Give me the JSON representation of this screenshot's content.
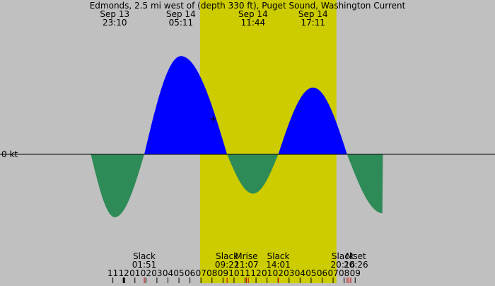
{
  "chart_data": {
    "type": "area",
    "title": "Edmonds, 2.5 mi west of (depth 330 ft), Puget Sound, Washington Current",
    "zero_label": "0 kt",
    "x_unit": "hours since 00:00 Sep 14",
    "x_range": [
      -11.25,
      33.7
    ],
    "y_range": [
      -2.6,
      4.2
    ],
    "daylight": {
      "start": 6.92,
      "end": 19.3,
      "color": "#cccc00"
    },
    "night_color": "#c0c0c0",
    "flood_color": "#0000ff",
    "ebb_color": "#2e8b57",
    "extremes": [
      {
        "date": "Sep 13",
        "time": "23:10",
        "t": -0.83,
        "v": -1.6
      },
      {
        "date": "Sep 14",
        "time": "05:11",
        "t": 5.18,
        "v": 2.5
      },
      {
        "date": "Sep 14",
        "time": "11:44",
        "t": 11.73,
        "v": -1.0
      },
      {
        "date": "Sep 14",
        "time": "17:11",
        "t": 17.18,
        "v": 1.7
      }
    ],
    "curve_nodes": [
      {
        "t": -3.0,
        "v": 0.0
      },
      {
        "t": -0.83,
        "v": -1.6
      },
      {
        "t": 1.85,
        "v": 0.0
      },
      {
        "t": 5.18,
        "v": 2.5
      },
      {
        "t": 9.37,
        "v": 0.0
      },
      {
        "t": 11.73,
        "v": -1.0
      },
      {
        "t": 14.02,
        "v": 0.0
      },
      {
        "t": 17.18,
        "v": 1.7
      },
      {
        "t": 20.27,
        "v": 0.0
      },
      {
        "t": 23.5,
        "v": -1.5
      }
    ],
    "events": [
      {
        "label": "Slack",
        "time": "01:51",
        "t": 1.85
      },
      {
        "label": "Slack",
        "time": "09:22",
        "t": 9.37
      },
      {
        "label": "Mrise",
        "time": "11:07",
        "t": 11.12
      },
      {
        "label": "Slack",
        "time": "14:01",
        "t": 14.02
      },
      {
        "label": "Slack",
        "time": "20:16",
        "t": 20.27
      },
      {
        "label": "Mset",
        "time": "20:26",
        "t": 20.43
      }
    ],
    "hour_ticks": [
      {
        "label": "11",
        "t": -1
      },
      {
        "label": "12",
        "t": 0
      },
      {
        "label": "01",
        "t": 1
      },
      {
        "label": "02",
        "t": 2
      },
      {
        "label": "03",
        "t": 3
      },
      {
        "label": "04",
        "t": 4
      },
      {
        "label": "05",
        "t": 5
      },
      {
        "label": "06",
        "t": 6
      },
      {
        "label": "07",
        "t": 7
      },
      {
        "label": "08",
        "t": 8
      },
      {
        "label": "09",
        "t": 9
      },
      {
        "label": "10",
        "t": 10
      },
      {
        "label": "11",
        "t": 11
      },
      {
        "label": "12",
        "t": 12
      },
      {
        "label": "01",
        "t": 13
      },
      {
        "label": "02",
        "t": 14
      },
      {
        "label": "03",
        "t": 15
      },
      {
        "label": "04",
        "t": 16
      },
      {
        "label": "05",
        "t": 17
      },
      {
        "label": "06",
        "t": 18
      },
      {
        "label": "07",
        "t": 19
      },
      {
        "label": "08",
        "t": 20
      },
      {
        "label": "09",
        "t": 21
      }
    ],
    "red_ticks": [
      1.85,
      9.37,
      11.12,
      11.3,
      14.02,
      20.27,
      20.43,
      20.6
    ],
    "now_marker": {
      "t": 8.1,
      "v": 0.9
    }
  }
}
